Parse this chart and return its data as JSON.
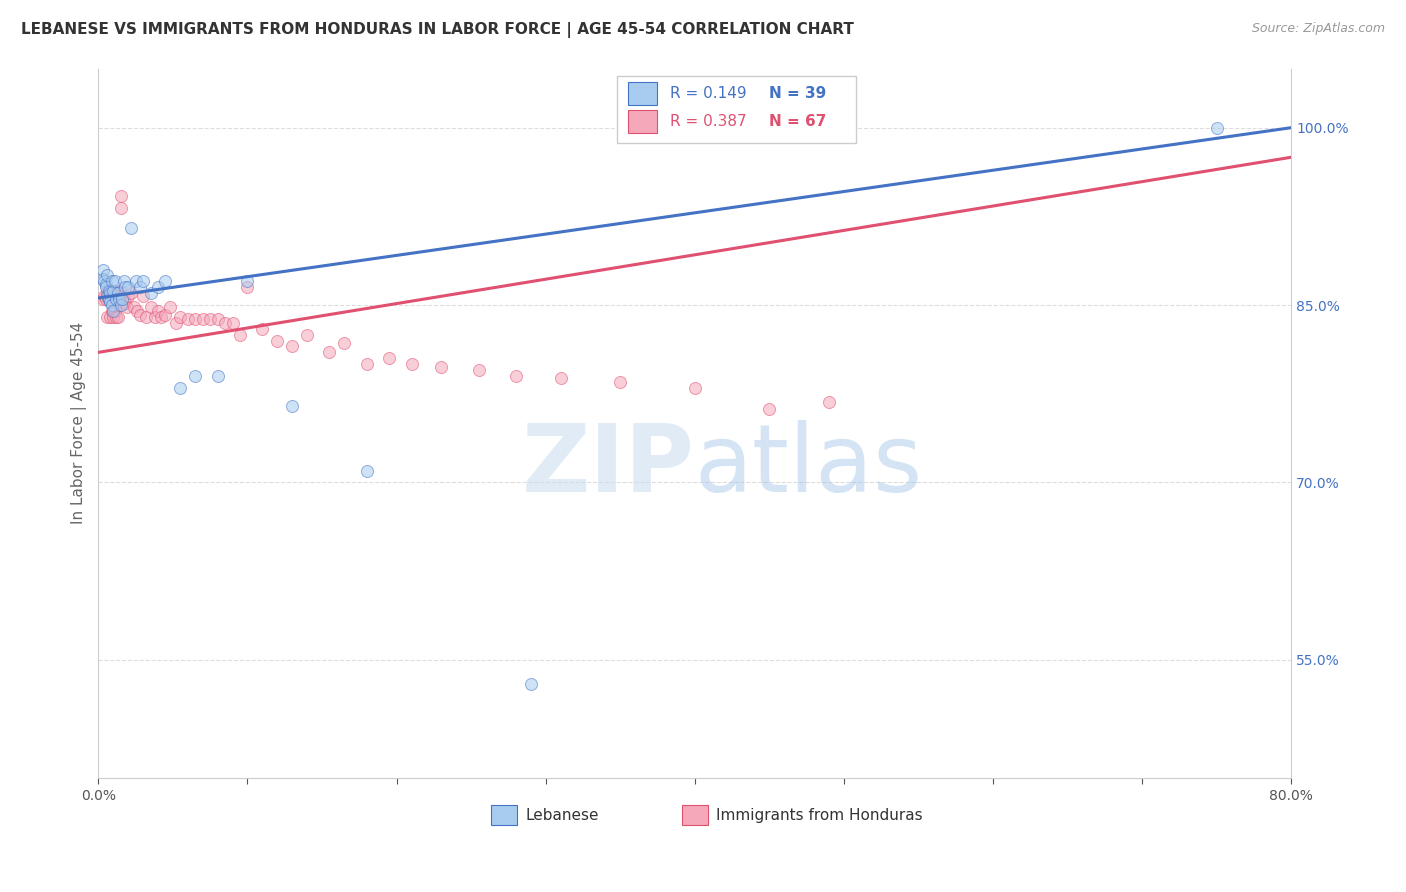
{
  "title": "LEBANESE VS IMMIGRANTS FROM HONDURAS IN LABOR FORCE | AGE 45-54 CORRELATION CHART",
  "source": "Source: ZipAtlas.com",
  "ylabel": "In Labor Force | Age 45-54",
  "xmin": 0.0,
  "xmax": 0.8,
  "ymin": 0.45,
  "ymax": 1.05,
  "yticks": [
    0.55,
    0.7,
    0.85,
    1.0
  ],
  "yticklabels_right": [
    "55.0%",
    "70.0%",
    "85.0%",
    "100.0%"
  ],
  "legend_r_blue": "R = 0.149",
  "legend_n_blue": "N = 39",
  "legend_r_pink": "R = 0.387",
  "legend_n_pink": "N = 67",
  "legend_label_blue": "Lebanese",
  "legend_label_pink": "Immigrants from Honduras",
  "blue_color": "#A8CCF0",
  "pink_color": "#F4A8BA",
  "blue_line_color": "#4472C4",
  "pink_line_color": "#E05070",
  "watermark_zip": "ZIP",
  "watermark_atlas": "atlas",
  "blue_x": [
    0.003,
    0.003,
    0.004,
    0.005,
    0.005,
    0.006,
    0.006,
    0.007,
    0.007,
    0.008,
    0.008,
    0.009,
    0.009,
    0.01,
    0.01,
    0.011,
    0.012,
    0.013,
    0.014,
    0.015,
    0.016,
    0.017,
    0.018,
    0.02,
    0.022,
    0.025,
    0.028,
    0.03,
    0.035,
    0.04,
    0.045,
    0.055,
    0.065,
    0.08,
    0.1,
    0.13,
    0.18,
    0.29,
    0.75
  ],
  "blue_y": [
    0.88,
    0.872,
    0.87,
    0.868,
    0.865,
    0.875,
    0.858,
    0.862,
    0.855,
    0.86,
    0.853,
    0.87,
    0.85,
    0.862,
    0.845,
    0.87,
    0.855,
    0.86,
    0.855,
    0.85,
    0.855,
    0.87,
    0.865,
    0.865,
    0.915,
    0.87,
    0.865,
    0.87,
    0.86,
    0.865,
    0.87,
    0.78,
    0.79,
    0.79,
    0.87,
    0.765,
    0.71,
    0.53,
    1.0
  ],
  "pink_x": [
    0.003,
    0.004,
    0.005,
    0.006,
    0.006,
    0.007,
    0.007,
    0.008,
    0.008,
    0.009,
    0.009,
    0.01,
    0.01,
    0.011,
    0.011,
    0.012,
    0.012,
    0.013,
    0.013,
    0.014,
    0.015,
    0.015,
    0.016,
    0.017,
    0.018,
    0.019,
    0.02,
    0.022,
    0.024,
    0.026,
    0.028,
    0.03,
    0.032,
    0.035,
    0.038,
    0.04,
    0.042,
    0.045,
    0.048,
    0.052,
    0.055,
    0.06,
    0.065,
    0.07,
    0.075,
    0.08,
    0.085,
    0.09,
    0.095,
    0.1,
    0.11,
    0.12,
    0.13,
    0.14,
    0.155,
    0.165,
    0.18,
    0.195,
    0.21,
    0.23,
    0.255,
    0.28,
    0.31,
    0.35,
    0.4,
    0.45,
    0.49
  ],
  "pink_y": [
    0.855,
    0.858,
    0.855,
    0.862,
    0.84,
    0.858,
    0.855,
    0.862,
    0.84,
    0.862,
    0.845,
    0.858,
    0.84,
    0.858,
    0.845,
    0.862,
    0.84,
    0.858,
    0.84,
    0.85,
    0.932,
    0.942,
    0.86,
    0.855,
    0.852,
    0.848,
    0.858,
    0.86,
    0.848,
    0.845,
    0.842,
    0.858,
    0.84,
    0.848,
    0.84,
    0.845,
    0.84,
    0.842,
    0.848,
    0.835,
    0.84,
    0.838,
    0.838,
    0.838,
    0.838,
    0.838,
    0.835,
    0.835,
    0.825,
    0.865,
    0.83,
    0.82,
    0.815,
    0.825,
    0.81,
    0.818,
    0.8,
    0.805,
    0.8,
    0.798,
    0.795,
    0.79,
    0.788,
    0.785,
    0.78,
    0.762,
    0.768
  ],
  "background_color": "#FFFFFF",
  "grid_color": "#DDDDDD",
  "title_color": "#333333",
  "axis_label_color": "#666666",
  "right_axis_color": "#4472C4",
  "dot_size": 75,
  "dot_alpha": 0.55,
  "line_width": 2.2
}
